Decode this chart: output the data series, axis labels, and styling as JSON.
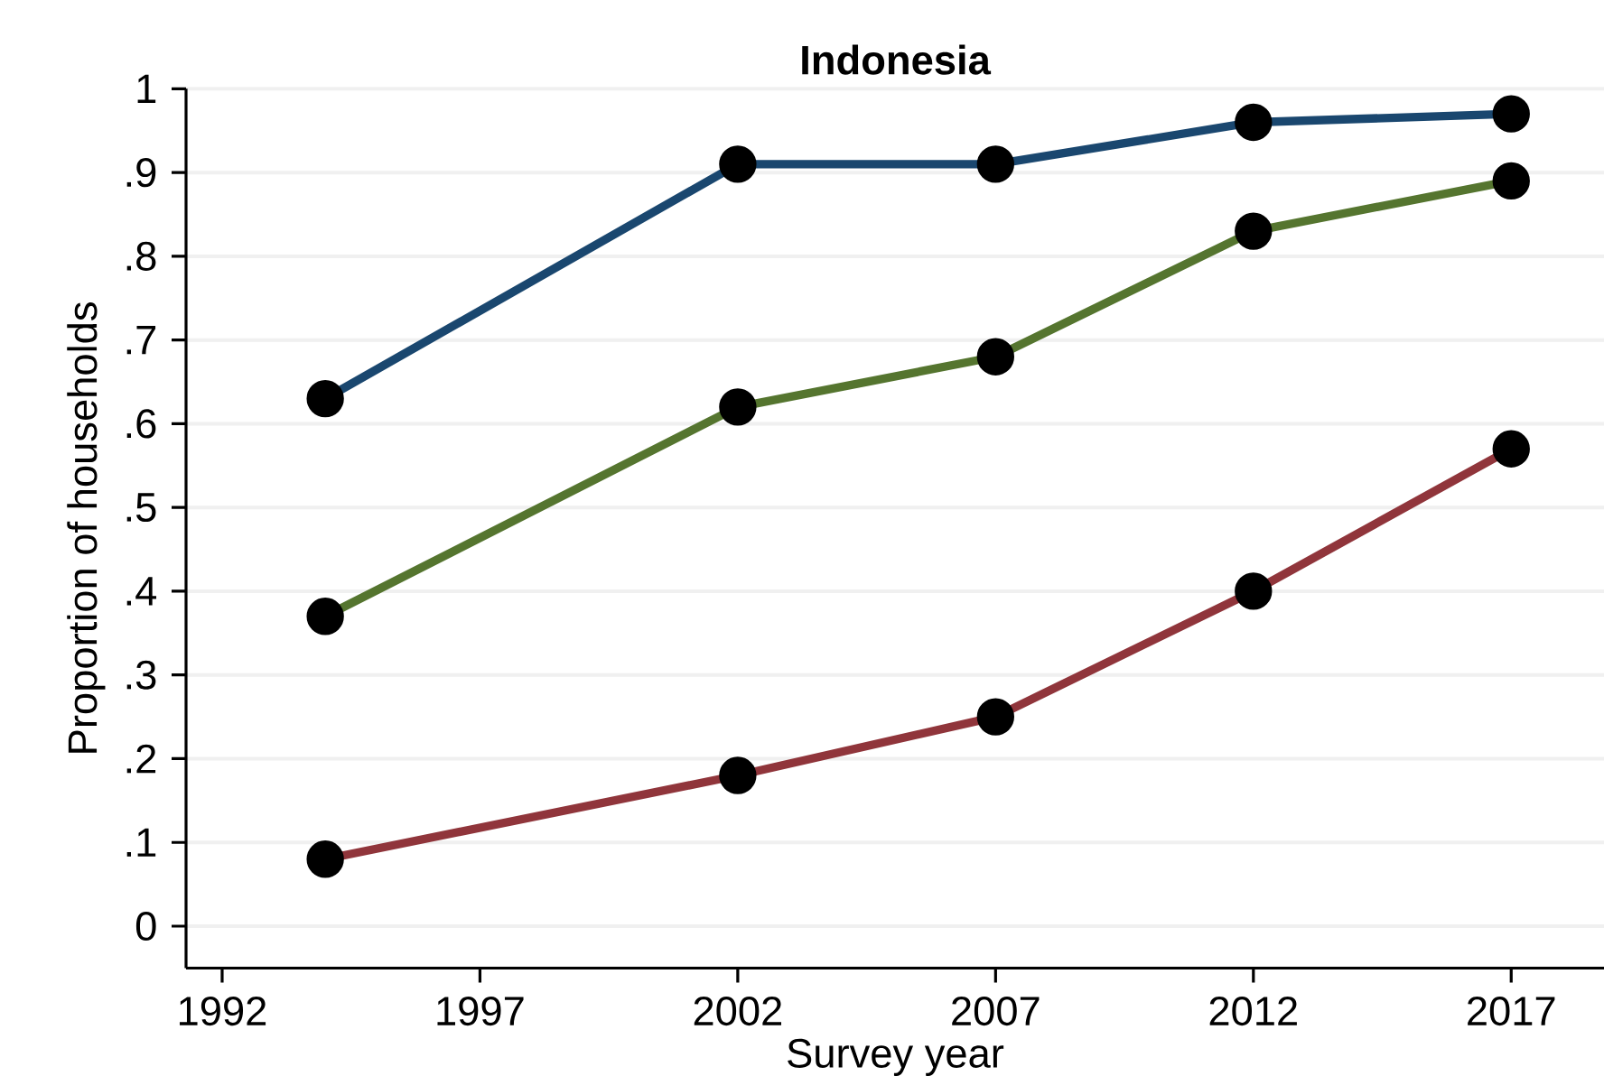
{
  "chart_data": {
    "type": "line",
    "title": "Indonesia",
    "xlabel": "Survey year",
    "ylabel": "Proportion of households",
    "x": [
      1994,
      2002,
      2007,
      2012,
      2017
    ],
    "series": [
      {
        "color": "#1a476f",
        "values": [
          0.63,
          0.91,
          0.91,
          0.96,
          0.97
        ]
      },
      {
        "color": "#55752f",
        "values": [
          0.37,
          0.62,
          0.68,
          0.83,
          0.89
        ]
      },
      {
        "color": "#90353b",
        "values": [
          0.08,
          0.18,
          0.25,
          0.4,
          0.57
        ]
      }
    ],
    "xlim": [
      1991.3,
      2018.8
    ],
    "ylim": [
      -0.05,
      1
    ],
    "xticks": [
      1992,
      1997,
      2002,
      2007,
      2012,
      2017
    ],
    "yticks": [
      0,
      {
        "value": 0.1,
        "label": ".1"
      },
      {
        "value": 0.2,
        "label": ".2"
      },
      {
        "value": 0.3,
        "label": ".3"
      },
      {
        "value": 0.4,
        "label": ".4"
      },
      {
        "value": 0.5,
        "label": ".5"
      },
      {
        "value": 0.6,
        "label": ".6"
      },
      {
        "value": 0.7,
        "label": ".7"
      },
      {
        "value": 0.8,
        "label": ".8"
      },
      {
        "value": 0.9,
        "label": ".9"
      },
      1
    ],
    "grid": "y",
    "marker": "circle",
    "line_style": "solid"
  }
}
